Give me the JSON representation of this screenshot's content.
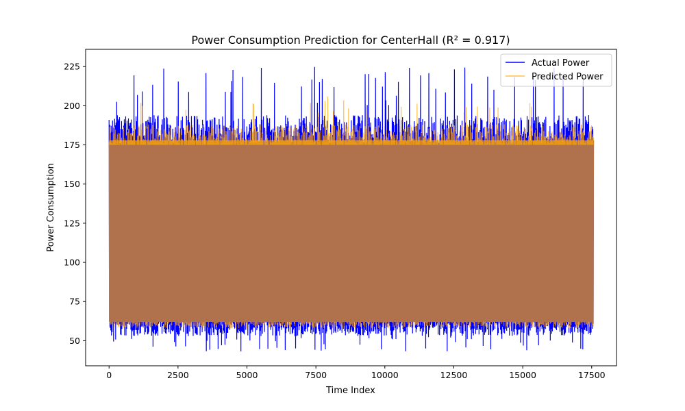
{
  "chart_data": {
    "type": "line",
    "title": "Power Consumption Prediction for CenterHall (R² = 0.917)",
    "xlabel": "Time Index",
    "ylabel": "Power Consumption",
    "xlim": [
      -850,
      18400
    ],
    "ylim": [
      34,
      236
    ],
    "x_ticks": [
      0,
      2500,
      5000,
      7500,
      10000,
      12500,
      15000,
      17500
    ],
    "x_tick_labels": [
      "0",
      "2500",
      "5000",
      "7500",
      "10000",
      "12500",
      "15000",
      "17500"
    ],
    "y_ticks": [
      50,
      75,
      100,
      125,
      150,
      175,
      200,
      225
    ],
    "y_tick_labels": [
      "50",
      "75",
      "100",
      "125",
      "150",
      "175",
      "200",
      "225"
    ],
    "grid": false,
    "legend_position": "upper right",
    "x_range": [
      0,
      17568
    ],
    "series": [
      {
        "name": "Actual Power",
        "color": "#0000ff",
        "band_low": 57,
        "band_high": 190,
        "min": 43,
        "max": 225
      },
      {
        "name": "Predicted Power",
        "color": "#ffa500",
        "band_low": 58,
        "band_high": 186,
        "min": 53,
        "max": 206
      }
    ]
  },
  "legend": {
    "items": [
      "Actual Power",
      "Predicted Power"
    ]
  }
}
